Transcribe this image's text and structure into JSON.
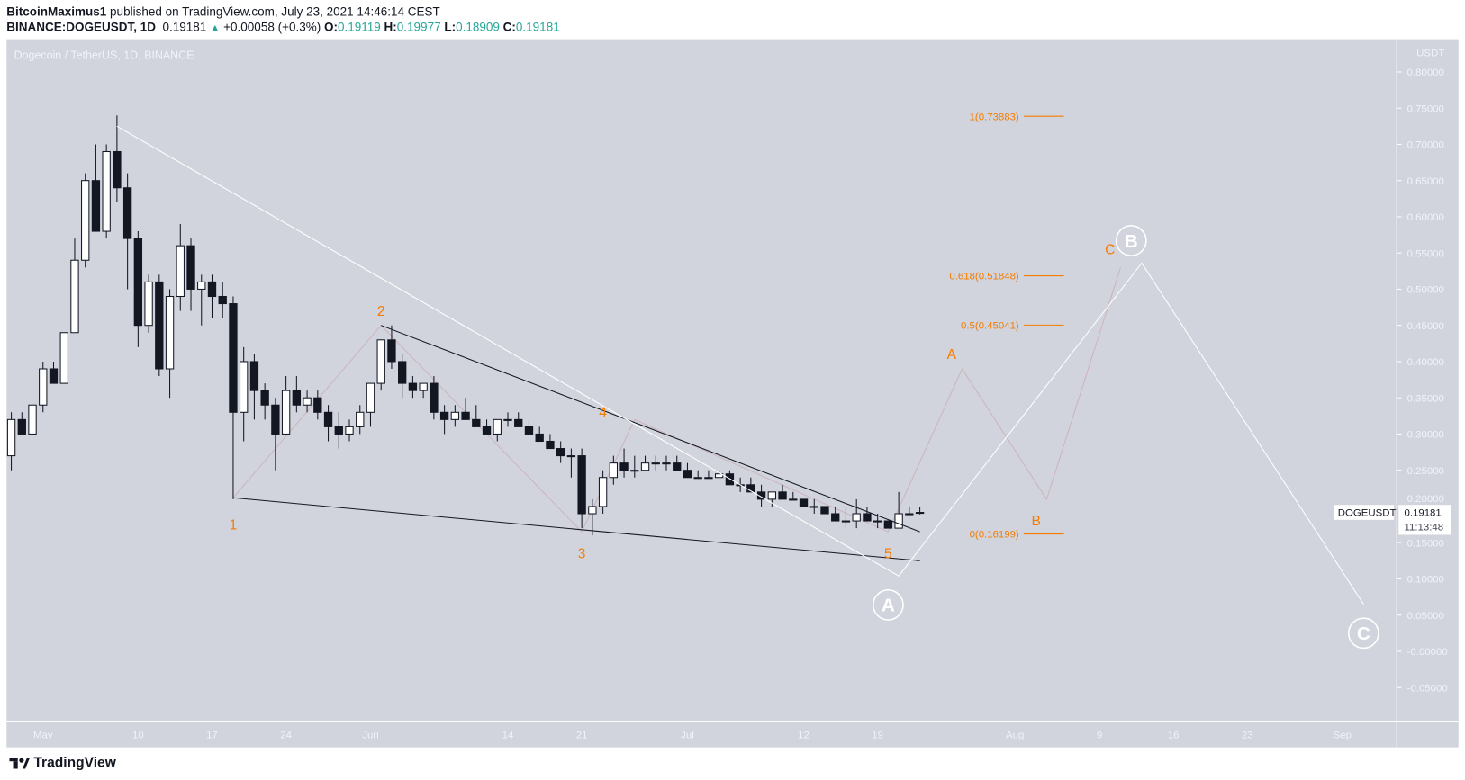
{
  "header": {
    "author": "BitcoinMaximus1",
    "published": "published on TradingView.com, July 23, 2021 14:46:14 CEST",
    "symbol": "BINANCE:DOGEUSDT, 1D",
    "last": "0.19181",
    "change": "+0.00058 (+0.3%)",
    "o_label": "O:",
    "o": "0.19119",
    "h_label": "H:",
    "h": "0.19977",
    "l_label": "L:",
    "l": "0.18909",
    "c_label": "C:",
    "c": "0.19181"
  },
  "chart_title": "Dogecoin / TetherUS, 1D, BINANCE",
  "logo": "TradingView",
  "colors": {
    "background": "#d1d4dc",
    "orange": "#f57c00",
    "white": "#ffffff",
    "candle_down": "#131722",
    "candle_up": "#ffffff"
  },
  "chart_data": {
    "type": "candlestick",
    "currency": "USDT",
    "ylim": [
      -0.1,
      0.85
    ],
    "y_ticks": [
      "0.80000",
      "0.75000",
      "0.70000",
      "0.65000",
      "0.60000",
      "0.55000",
      "0.50000",
      "0.45000",
      "0.40000",
      "0.35000",
      "0.30000",
      "0.25000",
      "0.20000",
      "0.15000",
      "0.10000",
      "0.05000",
      "-0.00000",
      "-0.05000"
    ],
    "x_ticks": [
      {
        "label": "May",
        "date": "2021-05-01"
      },
      {
        "label": "10",
        "date": "2021-05-10"
      },
      {
        "label": "17",
        "date": "2021-05-17"
      },
      {
        "label": "24",
        "date": "2021-05-24"
      },
      {
        "label": "Jun",
        "date": "2021-06-01"
      },
      {
        "label": "14",
        "date": "2021-06-14"
      },
      {
        "label": "21",
        "date": "2021-06-21"
      },
      {
        "label": "Jul",
        "date": "2021-07-01"
      },
      {
        "label": "12",
        "date": "2021-07-12"
      },
      {
        "label": "19",
        "date": "2021-07-19"
      },
      {
        "label": "Aug",
        "date": "2021-08-01"
      },
      {
        "label": "9",
        "date": "2021-08-09"
      },
      {
        "label": "16",
        "date": "2021-08-16"
      },
      {
        "label": "23",
        "date": "2021-08-23"
      },
      {
        "label": "Sep",
        "date": "2021-09-01"
      }
    ],
    "first_date": "2021-04-28",
    "ohlc": [
      [
        0.27,
        0.33,
        0.25,
        0.32
      ],
      [
        0.32,
        0.33,
        0.3,
        0.3
      ],
      [
        0.3,
        0.34,
        0.3,
        0.34
      ],
      [
        0.34,
        0.4,
        0.33,
        0.39
      ],
      [
        0.39,
        0.4,
        0.37,
        0.37
      ],
      [
        0.37,
        0.44,
        0.37,
        0.44
      ],
      [
        0.44,
        0.57,
        0.44,
        0.54
      ],
      [
        0.54,
        0.66,
        0.53,
        0.65
      ],
      [
        0.65,
        0.7,
        0.58,
        0.58
      ],
      [
        0.58,
        0.7,
        0.57,
        0.69
      ],
      [
        0.69,
        0.74,
        0.62,
        0.64
      ],
      [
        0.64,
        0.66,
        0.5,
        0.57
      ],
      [
        0.57,
        0.58,
        0.42,
        0.45
      ],
      [
        0.45,
        0.52,
        0.44,
        0.51
      ],
      [
        0.51,
        0.52,
        0.38,
        0.39
      ],
      [
        0.39,
        0.5,
        0.35,
        0.49
      ],
      [
        0.49,
        0.59,
        0.47,
        0.56
      ],
      [
        0.56,
        0.57,
        0.47,
        0.5
      ],
      [
        0.5,
        0.52,
        0.45,
        0.51
      ],
      [
        0.51,
        0.52,
        0.46,
        0.49
      ],
      [
        0.49,
        0.51,
        0.46,
        0.48
      ],
      [
        0.48,
        0.49,
        0.21,
        0.33
      ],
      [
        0.33,
        0.42,
        0.29,
        0.4
      ],
      [
        0.4,
        0.41,
        0.32,
        0.36
      ],
      [
        0.36,
        0.37,
        0.32,
        0.34
      ],
      [
        0.34,
        0.35,
        0.25,
        0.3
      ],
      [
        0.3,
        0.38,
        0.3,
        0.36
      ],
      [
        0.36,
        0.38,
        0.33,
        0.34
      ],
      [
        0.34,
        0.36,
        0.33,
        0.35
      ],
      [
        0.35,
        0.36,
        0.32,
        0.33
      ],
      [
        0.33,
        0.34,
        0.29,
        0.31
      ],
      [
        0.31,
        0.33,
        0.28,
        0.3
      ],
      [
        0.3,
        0.32,
        0.29,
        0.31
      ],
      [
        0.31,
        0.34,
        0.3,
        0.33
      ],
      [
        0.33,
        0.37,
        0.31,
        0.37
      ],
      [
        0.37,
        0.43,
        0.36,
        0.43
      ],
      [
        0.43,
        0.45,
        0.39,
        0.4
      ],
      [
        0.4,
        0.41,
        0.35,
        0.37
      ],
      [
        0.37,
        0.38,
        0.35,
        0.36
      ],
      [
        0.36,
        0.37,
        0.35,
        0.37
      ],
      [
        0.37,
        0.38,
        0.32,
        0.33
      ],
      [
        0.33,
        0.34,
        0.3,
        0.32
      ],
      [
        0.32,
        0.34,
        0.31,
        0.33
      ],
      [
        0.33,
        0.35,
        0.32,
        0.32
      ],
      [
        0.32,
        0.34,
        0.31,
        0.31
      ],
      [
        0.31,
        0.32,
        0.3,
        0.3
      ],
      [
        0.3,
        0.32,
        0.29,
        0.32
      ],
      [
        0.32,
        0.33,
        0.31,
        0.32
      ],
      [
        0.32,
        0.33,
        0.31,
        0.31
      ],
      [
        0.31,
        0.32,
        0.3,
        0.3
      ],
      [
        0.3,
        0.31,
        0.29,
        0.29
      ],
      [
        0.29,
        0.3,
        0.28,
        0.28
      ],
      [
        0.28,
        0.29,
        0.26,
        0.27
      ],
      [
        0.27,
        0.28,
        0.24,
        0.27
      ],
      [
        0.27,
        0.28,
        0.17,
        0.19
      ],
      [
        0.19,
        0.21,
        0.16,
        0.2
      ],
      [
        0.2,
        0.25,
        0.19,
        0.24
      ],
      [
        0.24,
        0.27,
        0.23,
        0.26
      ],
      [
        0.26,
        0.28,
        0.24,
        0.25
      ],
      [
        0.25,
        0.27,
        0.24,
        0.25
      ],
      [
        0.25,
        0.27,
        0.25,
        0.26
      ],
      [
        0.26,
        0.27,
        0.25,
        0.26
      ],
      [
        0.26,
        0.27,
        0.25,
        0.26
      ],
      [
        0.26,
        0.27,
        0.25,
        0.25
      ],
      [
        0.25,
        0.26,
        0.24,
        0.24
      ],
      [
        0.24,
        0.25,
        0.24,
        0.24
      ],
      [
        0.24,
        0.25,
        0.24,
        0.24
      ],
      [
        0.24,
        0.25,
        0.24,
        0.245
      ],
      [
        0.245,
        0.25,
        0.23,
        0.23
      ],
      [
        0.23,
        0.24,
        0.22,
        0.23
      ],
      [
        0.23,
        0.24,
        0.22,
        0.22
      ],
      [
        0.22,
        0.23,
        0.2,
        0.21
      ],
      [
        0.21,
        0.22,
        0.2,
        0.22
      ],
      [
        0.22,
        0.23,
        0.21,
        0.21
      ],
      [
        0.21,
        0.22,
        0.21,
        0.21
      ],
      [
        0.21,
        0.21,
        0.2,
        0.2
      ],
      [
        0.2,
        0.21,
        0.19,
        0.2
      ],
      [
        0.2,
        0.2,
        0.19,
        0.19
      ],
      [
        0.19,
        0.2,
        0.18,
        0.18
      ],
      [
        0.18,
        0.2,
        0.17,
        0.18
      ],
      [
        0.18,
        0.21,
        0.17,
        0.19
      ],
      [
        0.19,
        0.2,
        0.18,
        0.18
      ],
      [
        0.18,
        0.19,
        0.17,
        0.18
      ],
      [
        0.18,
        0.18,
        0.17,
        0.17
      ],
      [
        0.17,
        0.22,
        0.17,
        0.19
      ],
      [
        0.19,
        0.2,
        0.19,
        0.19
      ],
      [
        0.19119,
        0.19977,
        0.18909,
        0.19181
      ]
    ],
    "last_price": {
      "symbol": "DOGEUSDT",
      "price": "0.19181",
      "countdown": "11:13:48"
    },
    "fib_levels": [
      {
        "label": "1(0.73883)",
        "price": 0.73883
      },
      {
        "label": "0.618(0.51848)",
        "price": 0.51848
      },
      {
        "label": "0.5(0.45041)",
        "price": 0.45041
      },
      {
        "label": "0(0.16199)",
        "price": 0.16199
      }
    ],
    "trendlines": [
      {
        "color": "#131722",
        "points": [
          [
            "2021-05-19",
            0.212
          ],
          [
            "2021-07-23",
            0.125
          ]
        ]
      },
      {
        "color": "#131722",
        "points": [
          [
            "2021-06-02",
            0.45
          ],
          [
            "2021-07-23",
            0.165
          ]
        ]
      }
    ],
    "abc_path": [
      [
        "2021-05-08",
        0.725
      ],
      [
        "2021-07-21",
        0.104
      ],
      [
        "2021-08-13",
        0.536
      ],
      [
        "2021-09-03",
        0.065
      ]
    ],
    "wave_path": [
      [
        "2021-05-19",
        0.212
      ],
      [
        "2021-06-02",
        0.45
      ],
      [
        "2021-06-21",
        0.165
      ],
      [
        "2021-06-26",
        0.32
      ],
      [
        "2021-07-20",
        0.165
      ],
      [
        "2021-07-27",
        0.39
      ],
      [
        "2021-08-04",
        0.21
      ],
      [
        "2021-08-11",
        0.53
      ]
    ],
    "wave_labels": [
      {
        "text": "1",
        "date": "2021-05-19",
        "price": 0.175
      },
      {
        "text": "2",
        "date": "2021-06-02",
        "price": 0.47
      },
      {
        "text": "3",
        "date": "2021-06-21",
        "price": 0.135
      },
      {
        "text": "4",
        "date": "2021-06-23",
        "price": 0.33
      },
      {
        "text": "5",
        "date": "2021-07-20",
        "price": 0.135
      },
      {
        "text": "A",
        "date": "2021-07-26",
        "price": 0.41
      },
      {
        "text": "B",
        "date": "2021-08-03",
        "price": 0.18
      },
      {
        "text": "C",
        "date": "2021-08-10",
        "price": 0.555
      }
    ],
    "circle_labels": [
      {
        "text": "A",
        "date": "2021-07-20",
        "price": 0.064
      },
      {
        "text": "B",
        "date": "2021-08-12",
        "price": 0.567
      },
      {
        "text": "C",
        "date": "2021-09-03",
        "price": 0.025
      }
    ]
  }
}
